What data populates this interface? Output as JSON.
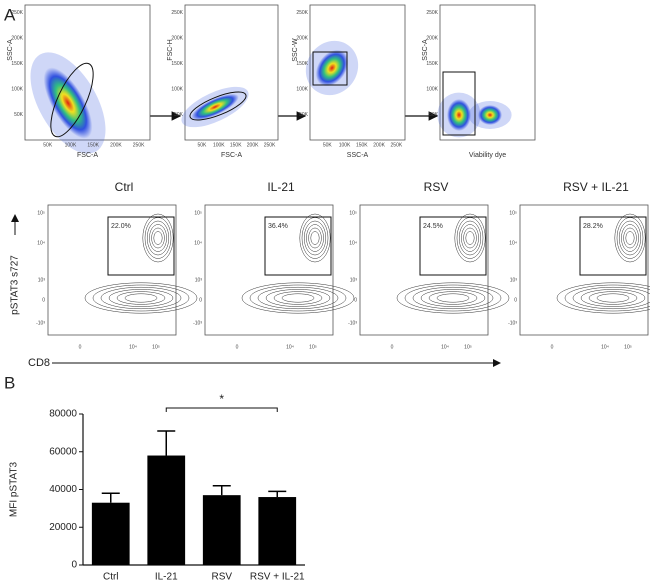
{
  "panels": {
    "a_label": "A",
    "b_label": "B"
  },
  "gating": [
    {
      "x_label": "FSC-A",
      "y_label": "SSC-A"
    },
    {
      "x_label": "FSC-A",
      "y_label": "FSC-H"
    },
    {
      "x_label": "SSC-A",
      "y_label": "SSC-W"
    },
    {
      "x_label": "Viability dye",
      "y_label": "SSC-A"
    }
  ],
  "gating_ticks": [
    "50K",
    "100K",
    "150K",
    "200K",
    "250K"
  ],
  "staining": {
    "y_label": "pSTAT3 s727",
    "x_label": "CD8",
    "x_ticks": [
      "0",
      "10⁴",
      "10⁵"
    ],
    "y_ticks": [
      "10⁵",
      "10⁴",
      "10³",
      "0",
      "-10³"
    ],
    "plots": [
      {
        "title": "Ctrl",
        "gate_percent": "22.0%"
      },
      {
        "title": "IL-21",
        "gate_percent": "36.4%"
      },
      {
        "title": "RSV",
        "gate_percent": "24.5%"
      },
      {
        "title": "RSV + IL-21",
        "gate_percent": "28.2%"
      }
    ]
  },
  "chart_data": {
    "type": "bar",
    "y_label": "MFI pSTAT3",
    "categories": [
      "Ctrl",
      "IL-21",
      "RSV",
      "RSV + IL-21"
    ],
    "values": [
      33000,
      58000,
      37000,
      36000
    ],
    "errors": [
      5000,
      13000,
      5000,
      3000
    ],
    "color": "#000000",
    "ylim": [
      0,
      80000
    ],
    "yticks": [
      0,
      20000,
      40000,
      60000,
      80000
    ],
    "significance": {
      "from": 1,
      "to": 3,
      "label": "*"
    }
  }
}
